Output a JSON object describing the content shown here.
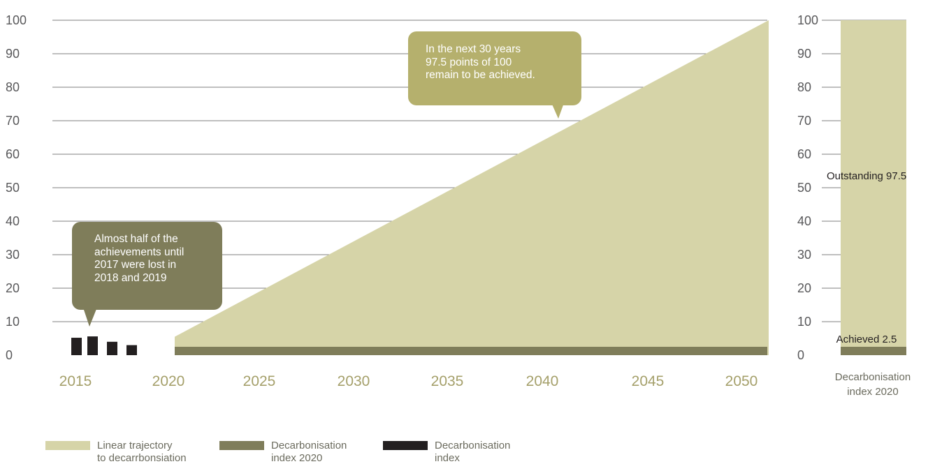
{
  "chart_data": [
    {
      "type": "area",
      "title": "",
      "xlabel": "",
      "ylabel": "",
      "x_ticks": [
        "2015",
        "2020",
        "2025",
        "2030",
        "2035",
        "2040",
        "2045",
        "2050"
      ],
      "y_ticks": [
        "0",
        "10",
        "20",
        "30",
        "40",
        "50",
        "60",
        "70",
        "80",
        "90",
        "100"
      ],
      "ylim": [
        0,
        100
      ],
      "series": [
        {
          "name": "Linear trajectory to decarrbonsiation",
          "kind": "area",
          "x": [
            2020,
            2051
          ],
          "values": [
            5.5,
            100
          ]
        },
        {
          "name": "Decarbonisation index 2020",
          "kind": "band",
          "x": [
            2020,
            2051
          ],
          "values": [
            2.5,
            2.5
          ]
        },
        {
          "name": "Decarbonisation index",
          "kind": "bar",
          "x": [
            2015,
            2016,
            2017,
            2018
          ],
          "values": [
            5.2,
            5.6,
            4.0,
            3.0
          ]
        }
      ],
      "grid": true,
      "legend_position": "bottom-left"
    },
    {
      "type": "bar",
      "categories": [
        "Decarbonisation index 2020"
      ],
      "stacked": true,
      "y_ticks": [
        "0",
        "10",
        "20",
        "30",
        "40",
        "50",
        "60",
        "70",
        "80",
        "90",
        "100"
      ],
      "ylim": [
        0,
        100
      ],
      "series": [
        {
          "name": "Achieved",
          "values": [
            2.5
          ]
        },
        {
          "name": "Outstanding",
          "values": [
            97.5
          ]
        }
      ],
      "data_labels": [
        "Achieved 2.5",
        "Outstanding 97.5"
      ],
      "category_label": "Decarbonisation\nindex 2020",
      "grid": true
    }
  ],
  "callouts": {
    "top": "In the next 30 years\n97.5 points of 100\nremain to be achieved.",
    "bottom": "Almost half of the\nachievements until\n2017 were lost in\n2018 and 2019"
  },
  "legend": [
    {
      "label": "Linear trajectory\nto decarrbonsiation",
      "color": "#d6d4a8"
    },
    {
      "label": "Decarbonisation\nindex 2020",
      "color": "#7f7d5a"
    },
    {
      "label": "Decarbonisation\nindex",
      "color": "#231f20"
    }
  ],
  "colors": {
    "trajectory": "#d6d4a8",
    "index2020": "#7f7d5a",
    "index": "#231f20",
    "callout_top": "#b5b06d",
    "callout_bottom": "#7f7d5a",
    "xtick": "#a5a06b",
    "ytick": "#58585a",
    "grid": "#555555"
  }
}
